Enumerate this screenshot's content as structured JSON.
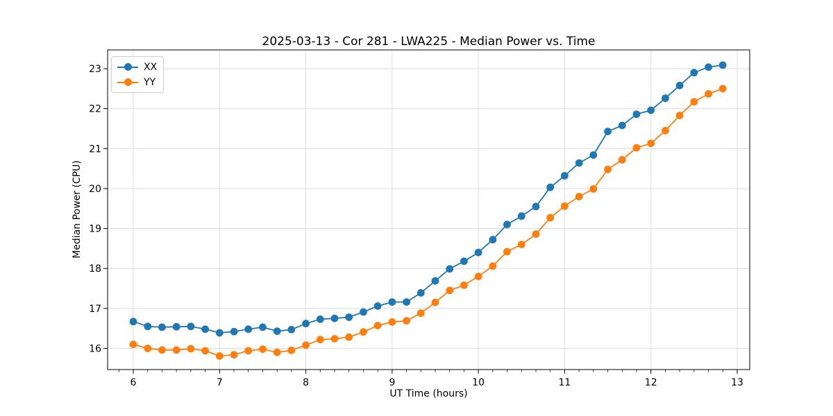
{
  "figure": {
    "background": "#ffffff",
    "text_color": "#000000",
    "spine_color": "#000000"
  },
  "chart_data": {
    "type": "line",
    "title": "2025-03-13 - Cor 281 - LWA225 - Median Power vs. Time",
    "xlabel": "UT Time (hours)",
    "ylabel": "Median Power (CPU)",
    "xlim": [
      5.702,
      13.145
    ],
    "ylim": [
      15.47,
      23.47
    ],
    "x_major_ticks": [
      6,
      7,
      8,
      9,
      10,
      11,
      12,
      13
    ],
    "y_major_ticks": [
      16,
      17,
      18,
      19,
      20,
      21,
      22,
      23
    ],
    "x_minor_step": 0.16667,
    "grid": true,
    "grid_color": "#dcdcdc",
    "legend_position": "upper-left",
    "marker": "circle",
    "x": [
      6.0,
      6.167,
      6.333,
      6.5,
      6.667,
      6.833,
      7.0,
      7.167,
      7.333,
      7.5,
      7.667,
      7.833,
      8.0,
      8.167,
      8.333,
      8.5,
      8.667,
      8.833,
      9.0,
      9.167,
      9.333,
      9.5,
      9.667,
      9.833,
      10.0,
      10.167,
      10.333,
      10.5,
      10.667,
      10.833,
      11.0,
      11.167,
      11.333,
      11.5,
      11.667,
      11.833,
      12.0,
      12.167,
      12.333,
      12.5,
      12.667,
      12.833
    ],
    "series": [
      {
        "name": "XX",
        "color": "#1f77b4",
        "values": [
          16.67,
          16.55,
          16.53,
          16.54,
          16.55,
          16.48,
          16.39,
          16.42,
          16.48,
          16.53,
          16.43,
          16.47,
          16.62,
          16.73,
          16.75,
          16.78,
          16.91,
          17.06,
          17.16,
          17.16,
          17.39,
          17.69,
          17.99,
          18.18,
          18.4,
          18.72,
          19.1,
          19.31,
          19.55,
          20.03,
          20.32,
          20.64,
          20.84,
          21.43,
          21.58,
          21.86,
          21.96,
          22.26,
          22.58,
          22.9,
          23.04,
          23.09
        ]
      },
      {
        "name": "YY",
        "color": "#ff7f0e",
        "values": [
          16.1,
          16.0,
          15.96,
          15.96,
          15.99,
          15.94,
          15.81,
          15.84,
          15.94,
          15.98,
          15.9,
          15.95,
          16.08,
          16.22,
          16.24,
          16.28,
          16.41,
          16.57,
          16.66,
          16.69,
          16.88,
          17.15,
          17.45,
          17.58,
          17.8,
          18.06,
          18.42,
          18.6,
          18.86,
          19.27,
          19.56,
          19.8,
          19.99,
          20.48,
          20.72,
          21.02,
          21.13,
          21.45,
          21.83,
          22.17,
          22.37,
          22.5
        ]
      }
    ]
  }
}
